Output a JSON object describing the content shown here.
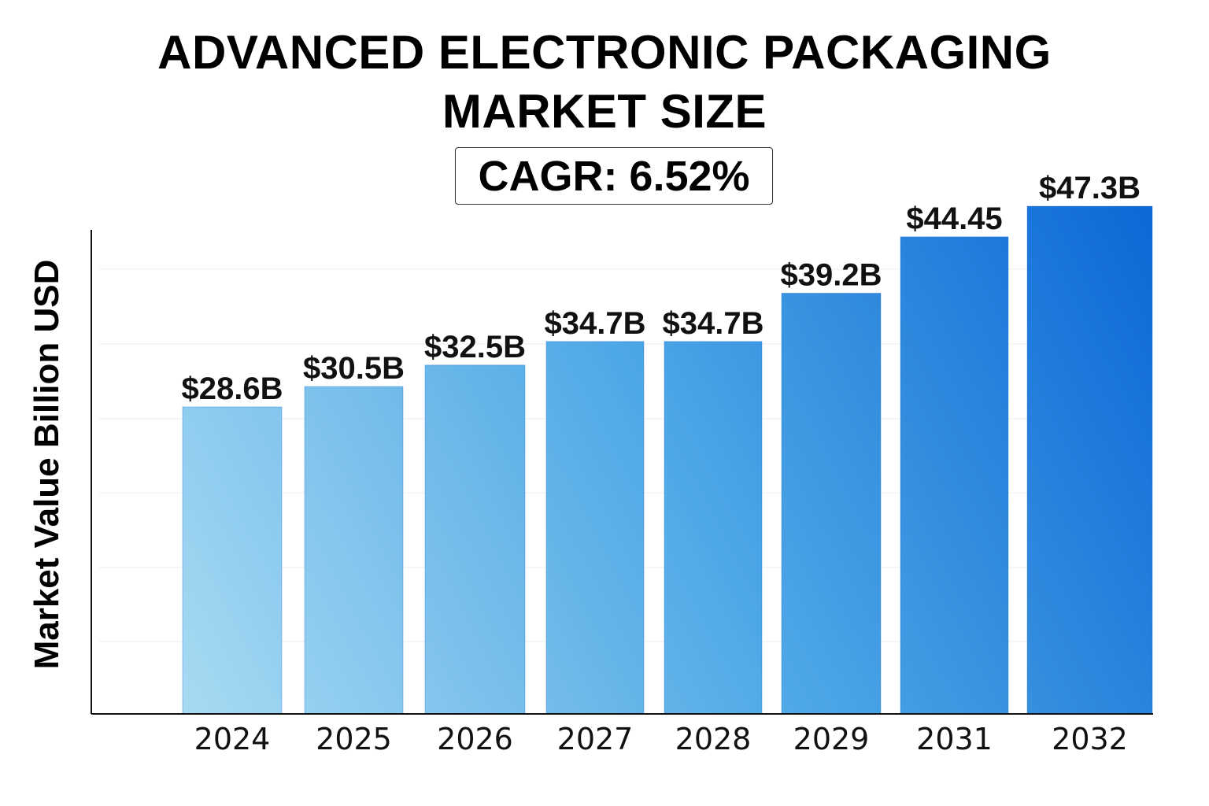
{
  "header": {
    "title_line1": "ADVANCED ELECTRONIC PACKAGING",
    "title_line2": "MARKET SIZE",
    "cagr": "CAGR: 6.52%"
  },
  "colors": {
    "bar_light": "#a8daf2",
    "bar_dark": "#0b68d6",
    "axis": "#111111",
    "grid": "#eeeeee"
  },
  "chart_data": {
    "type": "bar",
    "title": "ADVANCED ELECTRONIC PACKAGING MARKET SIZE",
    "subtitle": "CAGR: 6.52%",
    "xlabel": "",
    "ylabel": "Market Value Billion USD",
    "categories": [
      "2024",
      "2025",
      "2026",
      "2027",
      "2028",
      "2029",
      "2031",
      "2032"
    ],
    "values": [
      28.6,
      30.5,
      32.5,
      34.7,
      34.7,
      39.2,
      44.45,
      47.3
    ],
    "data_labels": [
      "$28.6B",
      "$30.5B",
      "$32.5B",
      "$34.7B",
      "$34.7B",
      "$39.2B",
      "$44.45",
      "$47.3B"
    ],
    "ylim": [
      0,
      47.3
    ],
    "grid": true,
    "legend": "none"
  }
}
